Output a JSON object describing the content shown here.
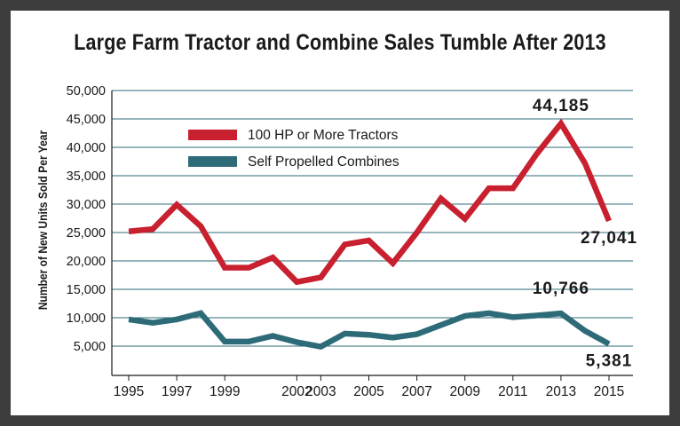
{
  "chart_data": {
    "type": "line",
    "title": "Large Farm Tractor and Combine Sales Tumble After 2013",
    "ylabel": "Number of New Units Sold Per Year",
    "xlabel": "",
    "ylim": [
      0,
      50000
    ],
    "xlim": [
      1995,
      2015
    ],
    "grid": true,
    "legend_position": "upper-left",
    "y_ticks": [
      5000,
      10000,
      15000,
      20000,
      25000,
      30000,
      35000,
      40000,
      45000,
      50000
    ],
    "y_tick_labels": [
      "5,000",
      "10,000",
      "15,000",
      "20,000",
      "25,000",
      "30,000",
      "35,000",
      "40,000",
      "45,000",
      "50,000"
    ],
    "x_ticks": [
      1995,
      1997,
      1999,
      2002,
      2003,
      2005,
      2007,
      2009,
      2011,
      2013,
      2015
    ],
    "x_tick_labels": [
      "1995",
      "1997",
      "1999",
      "2002",
      "2003",
      "2005",
      "2007",
      "2009",
      "2011",
      "2013",
      "2015"
    ],
    "x": [
      1995,
      1996,
      1997,
      1998,
      1999,
      2000,
      2001,
      2002,
      2003,
      2004,
      2005,
      2006,
      2007,
      2008,
      2009,
      2010,
      2011,
      2012,
      2013,
      2014,
      2015
    ],
    "series": [
      {
        "name": "100 HP or More Tractors",
        "color": "#c8202f",
        "values": [
          25200,
          25600,
          29900,
          26100,
          18800,
          18800,
          20600,
          16300,
          17100,
          22900,
          23600,
          19600,
          25000,
          31000,
          27400,
          32800,
          32800,
          38900,
          44185,
          37200,
          27041
        ]
      },
      {
        "name": "Self Propelled Combines",
        "color": "#2e6b78",
        "values": [
          9700,
          9100,
          9700,
          10800,
          5800,
          5800,
          6800,
          5700,
          4900,
          7200,
          7000,
          6500,
          7100,
          8700,
          10300,
          10800,
          10100,
          10400,
          10766,
          7700,
          5381
        ]
      }
    ],
    "annotations": [
      {
        "text": "44,185",
        "x": 2013,
        "y": 44185
      },
      {
        "text": "27,041",
        "x": 2015,
        "y": 27041
      },
      {
        "text": "10,766",
        "x": 2013,
        "y": 10766
      },
      {
        "text": "5,381",
        "x": 2015,
        "y": 5381
      }
    ]
  },
  "colors": {
    "frame": "#3d3d3d",
    "grid": "#2e6b78",
    "tractors": "#c8202f",
    "combines": "#2e6b78"
  }
}
